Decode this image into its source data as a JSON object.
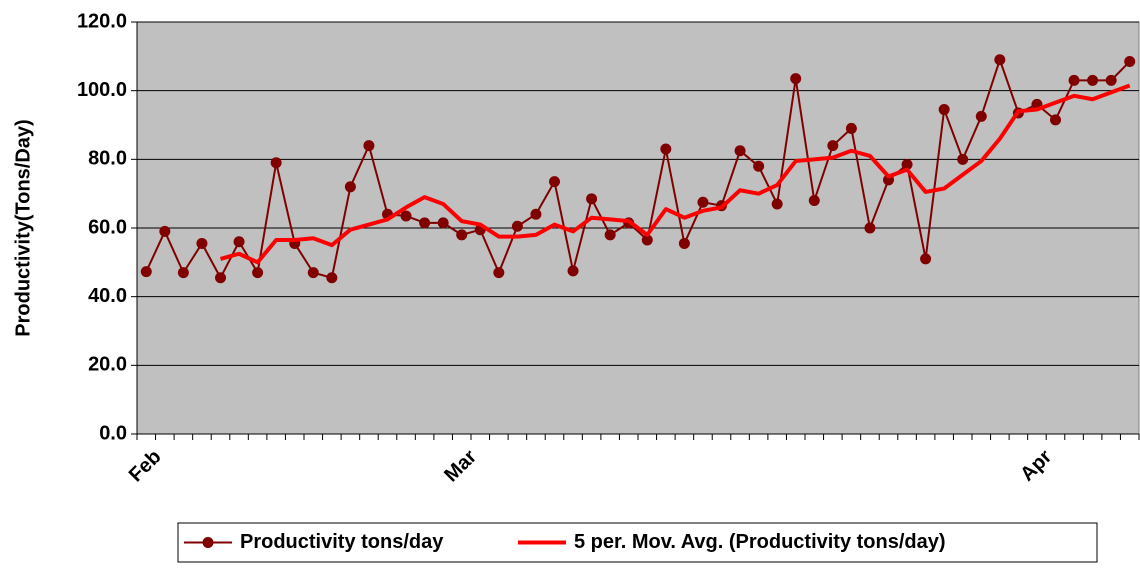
{
  "chart_data": {
    "type": "line",
    "y_label": "Productivity(Tons/Day)",
    "categories": [
      "Feb",
      null,
      null,
      null,
      null,
      null,
      null,
      null,
      null,
      null,
      null,
      null,
      null,
      null,
      null,
      null,
      null,
      "Mar",
      null,
      null,
      null,
      null,
      null,
      null,
      null,
      null,
      null,
      null,
      null,
      null,
      null,
      null,
      null,
      null,
      null,
      null,
      null,
      null,
      null,
      null,
      null,
      null,
      null,
      null,
      null,
      null,
      null,
      null,
      "Apr",
      null,
      null,
      null,
      null,
      null
    ],
    "series": [
      {
        "name": "Productivity tons/day",
        "color": "#800000",
        "marker": true,
        "values": [
          47.3,
          59,
          47,
          55.5,
          45.5,
          56,
          47,
          79,
          55.5,
          47,
          45.5,
          72,
          84,
          64,
          63.5,
          61.5,
          61.5,
          58,
          59.5,
          47,
          60.5,
          64,
          73.5,
          47.5,
          68.5,
          58,
          61.5,
          56.5,
          83,
          55.5,
          67.5,
          66.5,
          82.5,
          78,
          67,
          103.5,
          68,
          84,
          89,
          60,
          74,
          78.5,
          51,
          94.5,
          80,
          92.5,
          109,
          93.5,
          96,
          91.5,
          103,
          103,
          103,
          108.5
        ]
      },
      {
        "name": "5 per. Mov. Avg. (Productivity tons/day)",
        "color": "#ff0000",
        "marker": false,
        "values": [
          null,
          null,
          null,
          null,
          51,
          52.5,
          50,
          56.5,
          56.5,
          57,
          55,
          59.5,
          61,
          62.5,
          66,
          69,
          67,
          62,
          61,
          57.5,
          57.5,
          58,
          61,
          59,
          63,
          62.5,
          62,
          58,
          65.5,
          63,
          65,
          66,
          71,
          70,
          72.5,
          79.5,
          80,
          80.5,
          82.5,
          81,
          75,
          77,
          70.5,
          71.5,
          75.5,
          79.5,
          86,
          94,
          94.5,
          96.5,
          98.5,
          97.5,
          99.5,
          101.5
        ]
      }
    ],
    "ylim": [
      0,
      120
    ],
    "yticks": [
      {
        "value": 0,
        "label": "0.0"
      },
      {
        "value": 20,
        "label": "20.0"
      },
      {
        "value": 40,
        "label": "40.0"
      },
      {
        "value": 60,
        "label": "60.0"
      },
      {
        "value": 80,
        "label": "80.0"
      },
      {
        "value": 100,
        "label": "100.0"
      },
      {
        "value": 120,
        "label": "120.0"
      }
    ],
    "grid": true,
    "plot_background": "#c0c0c0",
    "legend": "bottom"
  }
}
